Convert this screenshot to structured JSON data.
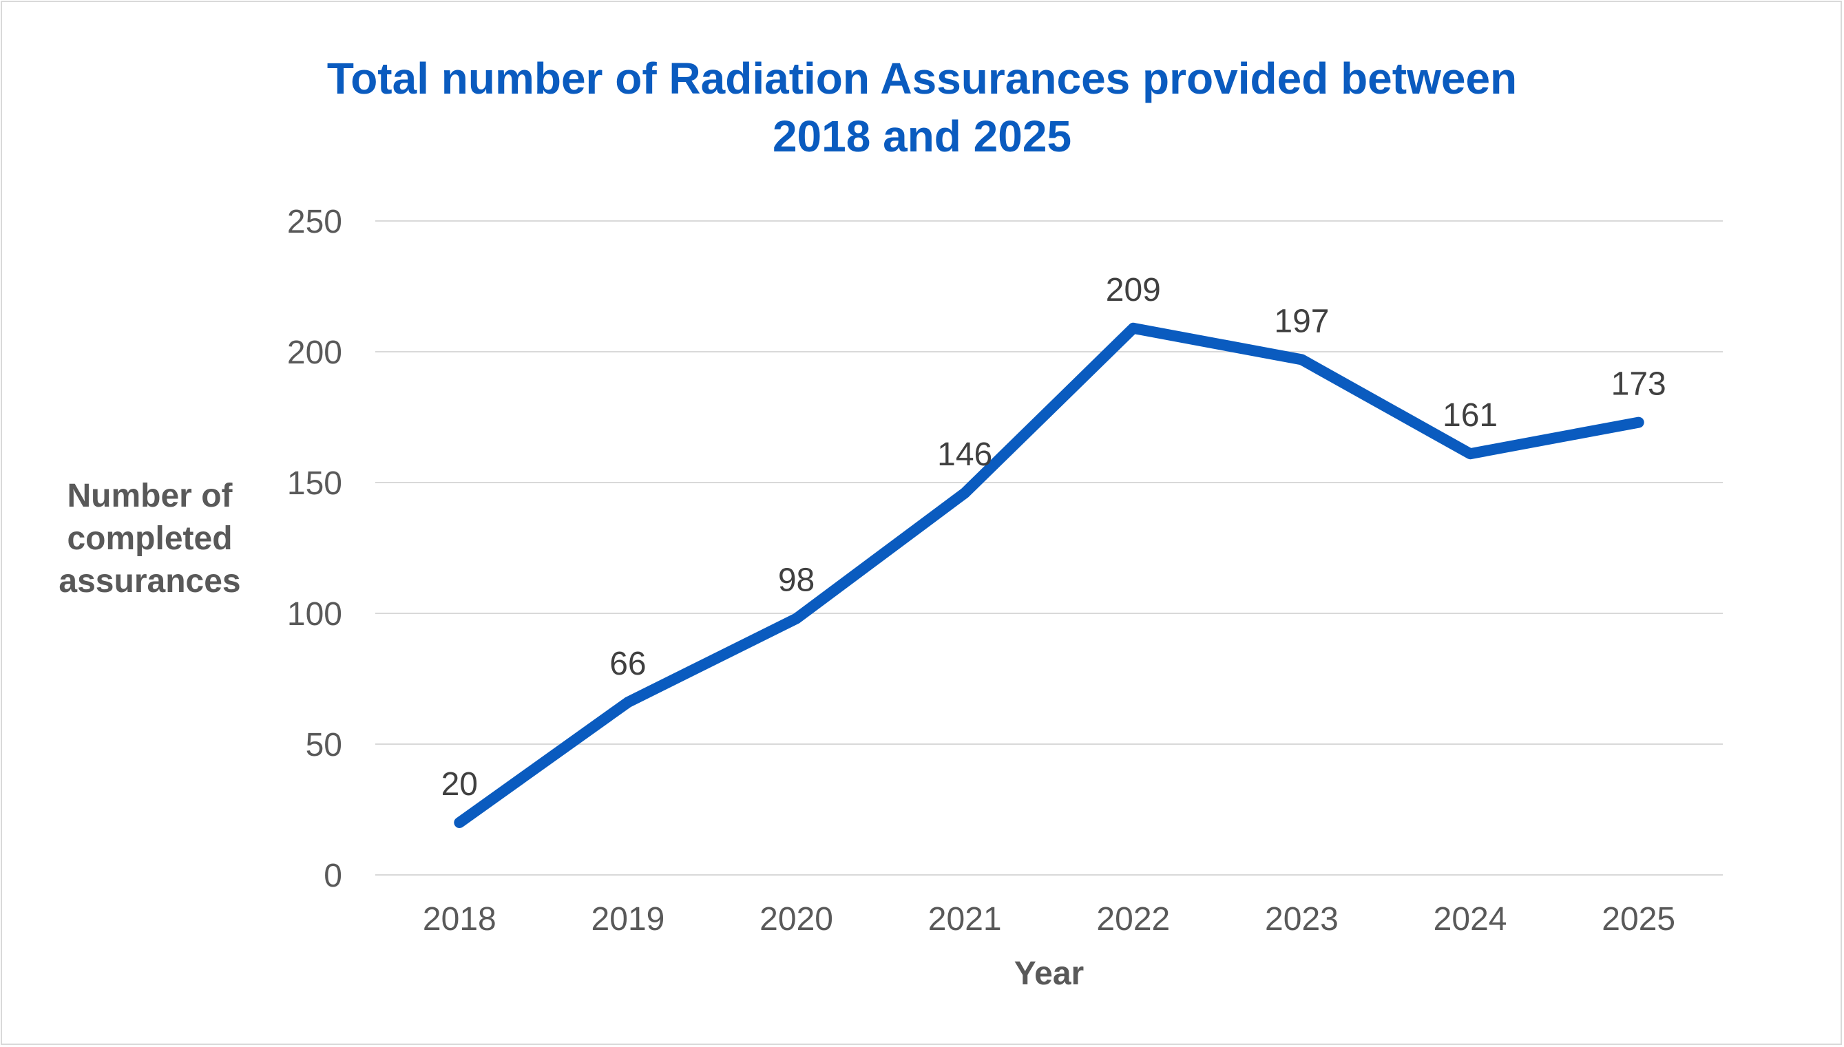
{
  "chart_data": {
    "type": "line",
    "title": "Total number of Radiation Assurances provided between 2018 and 2025",
    "title_lines": [
      "Total number of Radiation Assurances provided between",
      "2018 and 2025"
    ],
    "xlabel": "Year",
    "ylabel": "Number of completed assurances",
    "ylabel_lines": [
      "Number of",
      "completed",
      "assurances"
    ],
    "categories": [
      "2018",
      "2019",
      "2020",
      "2021",
      "2022",
      "2023",
      "2024",
      "2025"
    ],
    "series": [
      {
        "values": [
          20,
          66,
          98,
          146,
          209,
          197,
          161,
          173
        ],
        "color": "#0a5bbf"
      }
    ],
    "data_labels": [
      "20",
      "66",
      "98",
      "146",
      "209",
      "197",
      "161",
      "173"
    ],
    "ylim": [
      0,
      250
    ],
    "yticks": [
      0,
      50,
      100,
      150,
      200,
      250
    ],
    "ytick_labels": [
      "0",
      "50",
      "100",
      "150",
      "200",
      "250"
    ],
    "grid": true,
    "gridline_color": "#d9d9d9",
    "legend": "none"
  }
}
